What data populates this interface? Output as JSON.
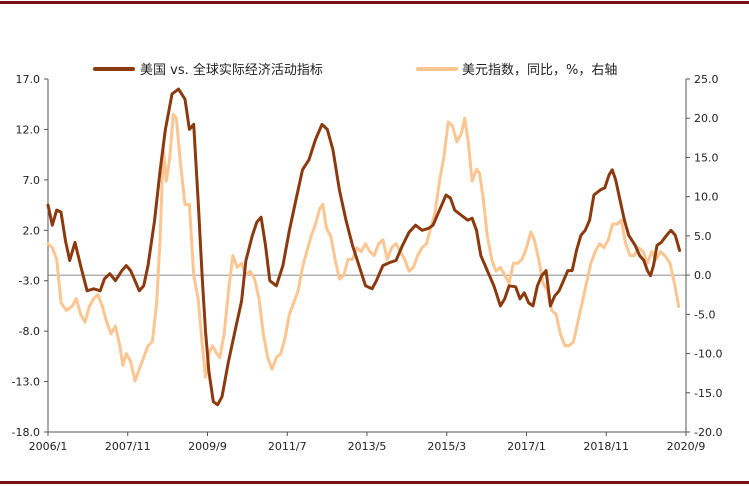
{
  "chart_data": {
    "type": "line",
    "title": "",
    "xlabel": "",
    "ylabel": "",
    "ylim": [
      -18.0,
      17.0
    ],
    "y2lim": [
      -20.0,
      25.0
    ],
    "y_ticks": [
      "17.0",
      "12.0",
      "7.0",
      "2.0",
      "-3.0",
      "-8.0",
      "-13.0",
      "-18.0"
    ],
    "y2_ticks": [
      "25.0",
      "20.0",
      "15.0",
      "10.0",
      "5.0",
      "0.0",
      "-5.0",
      "-10.0",
      "-15.0",
      "-20.0"
    ],
    "x_range": [
      2006.0,
      2020.667
    ],
    "x_ticks": [
      {
        "label": "2006/1",
        "value": 2006.0
      },
      {
        "label": "2007/11",
        "value": 2007.833
      },
      {
        "label": "2009/9",
        "value": 2009.667
      },
      {
        "label": "2011/7",
        "value": 2011.5
      },
      {
        "label": "2013/5",
        "value": 2013.333
      },
      {
        "label": "2015/3",
        "value": 2015.167
      },
      {
        "label": "2017/1",
        "value": 2017.0
      },
      {
        "label": "2018/11",
        "value": 2018.833
      },
      {
        "label": "2020/9",
        "value": 2020.667
      }
    ],
    "legend_position": "top",
    "zero_line": true,
    "series": [
      {
        "name": "美国 vs. 全球实际经济活动指标",
        "axis": "left",
        "color": "#8b3a0f",
        "points": [
          [
            2006.0,
            4.5
          ],
          [
            2006.1,
            2.5
          ],
          [
            2006.2,
            4.0
          ],
          [
            2006.3,
            3.8
          ],
          [
            2006.4,
            1.0
          ],
          [
            2006.5,
            -1.0
          ],
          [
            2006.62,
            0.8
          ],
          [
            2006.75,
            -1.5
          ],
          [
            2006.9,
            -4.0
          ],
          [
            2007.05,
            -3.8
          ],
          [
            2007.2,
            -4.0
          ],
          [
            2007.3,
            -2.8
          ],
          [
            2007.42,
            -2.3
          ],
          [
            2007.55,
            -3.0
          ],
          [
            2007.7,
            -2.0
          ],
          [
            2007.8,
            -1.5
          ],
          [
            2007.9,
            -2.0
          ],
          [
            2008.0,
            -3.0
          ],
          [
            2008.1,
            -4.0
          ],
          [
            2008.2,
            -3.5
          ],
          [
            2008.3,
            -1.5
          ],
          [
            2008.45,
            3.0
          ],
          [
            2008.58,
            8.0
          ],
          [
            2008.7,
            12.0
          ],
          [
            2008.85,
            15.5
          ],
          [
            2009.0,
            16.0
          ],
          [
            2009.15,
            15.0
          ],
          [
            2009.25,
            12.0
          ],
          [
            2009.35,
            12.5
          ],
          [
            2009.45,
            5.0
          ],
          [
            2009.55,
            -3.0
          ],
          [
            2009.62,
            -8.0
          ],
          [
            2009.7,
            -12.0
          ],
          [
            2009.8,
            -15.0
          ],
          [
            2009.9,
            -15.3
          ],
          [
            2010.0,
            -14.5
          ],
          [
            2010.15,
            -11.0
          ],
          [
            2010.3,
            -8.0
          ],
          [
            2010.45,
            -5.0
          ],
          [
            2010.55,
            -1.0
          ],
          [
            2010.7,
            1.5
          ],
          [
            2010.8,
            2.8
          ],
          [
            2010.9,
            3.3
          ],
          [
            2011.0,
            0.5
          ],
          [
            2011.1,
            -3.0
          ],
          [
            2011.25,
            -3.5
          ],
          [
            2011.4,
            -1.5
          ],
          [
            2011.55,
            2.0
          ],
          [
            2011.7,
            5.0
          ],
          [
            2011.85,
            8.0
          ],
          [
            2012.0,
            9.0
          ],
          [
            2012.15,
            11.0
          ],
          [
            2012.3,
            12.5
          ],
          [
            2012.42,
            12.0
          ],
          [
            2012.55,
            10.0
          ],
          [
            2012.7,
            6.0
          ],
          [
            2012.85,
            3.0
          ],
          [
            2013.0,
            0.5
          ],
          [
            2013.15,
            -1.5
          ],
          [
            2013.3,
            -3.5
          ],
          [
            2013.45,
            -3.8
          ],
          [
            2013.55,
            -3.0
          ],
          [
            2013.7,
            -1.5
          ],
          [
            2013.85,
            -1.2
          ],
          [
            2014.0,
            -1.0
          ],
          [
            2014.15,
            0.5
          ],
          [
            2014.3,
            1.8
          ],
          [
            2014.45,
            2.5
          ],
          [
            2014.6,
            2.0
          ],
          [
            2014.75,
            2.2
          ],
          [
            2014.85,
            2.5
          ],
          [
            2015.0,
            4.0
          ],
          [
            2015.15,
            5.5
          ],
          [
            2015.25,
            5.2
          ],
          [
            2015.35,
            4.0
          ],
          [
            2015.5,
            3.5
          ],
          [
            2015.65,
            3.0
          ],
          [
            2015.75,
            3.2
          ],
          [
            2015.85,
            2.0
          ],
          [
            2015.95,
            -0.5
          ],
          [
            2016.1,
            -2.0
          ],
          [
            2016.25,
            -3.5
          ],
          [
            2016.4,
            -5.5
          ],
          [
            2016.5,
            -4.8
          ],
          [
            2016.6,
            -3.5
          ],
          [
            2016.75,
            -3.6
          ],
          [
            2016.85,
            -4.8
          ],
          [
            2016.95,
            -4.2
          ],
          [
            2017.05,
            -5.2
          ],
          [
            2017.15,
            -5.5
          ],
          [
            2017.25,
            -3.5
          ],
          [
            2017.35,
            -2.5
          ],
          [
            2017.45,
            -2.0
          ],
          [
            2017.55,
            -5.5
          ],
          [
            2017.65,
            -4.5
          ],
          [
            2017.75,
            -4.0
          ],
          [
            2017.85,
            -3.0
          ],
          [
            2017.95,
            -2.0
          ],
          [
            2018.05,
            -2.0
          ],
          [
            2018.15,
            0.0
          ],
          [
            2018.25,
            1.5
          ],
          [
            2018.35,
            2.0
          ],
          [
            2018.45,
            3.0
          ],
          [
            2018.55,
            5.5
          ],
          [
            2018.7,
            6.0
          ],
          [
            2018.8,
            6.2
          ],
          [
            2018.9,
            7.5
          ],
          [
            2018.97,
            8.0
          ],
          [
            2019.05,
            7.0
          ],
          [
            2019.15,
            5.0
          ],
          [
            2019.25,
            3.0
          ],
          [
            2019.35,
            1.5
          ],
          [
            2019.5,
            0.5
          ],
          [
            2019.6,
            -0.5
          ],
          [
            2019.7,
            -1.0
          ],
          [
            2019.78,
            -2.0
          ],
          [
            2019.85,
            -2.5
          ],
          [
            2019.92,
            -1.5
          ],
          [
            2020.0,
            0.5
          ],
          [
            2020.1,
            0.8
          ],
          [
            2020.22,
            1.5
          ],
          [
            2020.32,
            2.0
          ],
          [
            2020.42,
            1.5
          ],
          [
            2020.52,
            0.0
          ]
        ]
      },
      {
        "name": "美元指数，同比，%，右轴",
        "axis": "right",
        "color": "#fcc591",
        "points": [
          [
            2006.0,
            4.0
          ],
          [
            2006.1,
            3.5
          ],
          [
            2006.2,
            2.0
          ],
          [
            2006.3,
            -3.5
          ],
          [
            2006.42,
            -4.5
          ],
          [
            2006.55,
            -4.0
          ],
          [
            2006.65,
            -3.0
          ],
          [
            2006.75,
            -5.0
          ],
          [
            2006.85,
            -6.0
          ],
          [
            2006.95,
            -4.0
          ],
          [
            2007.05,
            -3.0
          ],
          [
            2007.15,
            -2.5
          ],
          [
            2007.25,
            -4.0
          ],
          [
            2007.35,
            -6.0
          ],
          [
            2007.45,
            -7.5
          ],
          [
            2007.55,
            -6.5
          ],
          [
            2007.65,
            -9.0
          ],
          [
            2007.72,
            -11.5
          ],
          [
            2007.8,
            -10.0
          ],
          [
            2007.9,
            -11.0
          ],
          [
            2008.0,
            -13.5
          ],
          [
            2008.1,
            -12.0
          ],
          [
            2008.2,
            -10.5
          ],
          [
            2008.3,
            -9.0
          ],
          [
            2008.4,
            -8.5
          ],
          [
            2008.5,
            -3.5
          ],
          [
            2008.58,
            5.0
          ],
          [
            2008.65,
            16.0
          ],
          [
            2008.72,
            12.0
          ],
          [
            2008.8,
            15.0
          ],
          [
            2008.88,
            20.5
          ],
          [
            2008.95,
            20.0
          ],
          [
            2009.05,
            14.0
          ],
          [
            2009.15,
            9.0
          ],
          [
            2009.25,
            9.0
          ],
          [
            2009.35,
            0.0
          ],
          [
            2009.45,
            -3.0
          ],
          [
            2009.55,
            -9.0
          ],
          [
            2009.62,
            -13.0
          ],
          [
            2009.7,
            -10.0
          ],
          [
            2009.78,
            -9.0
          ],
          [
            2009.88,
            -10.0
          ],
          [
            2009.95,
            -10.5
          ],
          [
            2010.05,
            -7.5
          ],
          [
            2010.15,
            -2.0
          ],
          [
            2010.25,
            2.5
          ],
          [
            2010.35,
            1.0
          ],
          [
            2010.45,
            1.5
          ],
          [
            2010.55,
            0.0
          ],
          [
            2010.65,
            0.5
          ],
          [
            2010.75,
            -0.5
          ],
          [
            2010.85,
            -3.0
          ],
          [
            2010.95,
            -7.5
          ],
          [
            2011.05,
            -10.5
          ],
          [
            2011.15,
            -12.0
          ],
          [
            2011.25,
            -10.5
          ],
          [
            2011.35,
            -10.0
          ],
          [
            2011.45,
            -8.0
          ],
          [
            2011.55,
            -5.0
          ],
          [
            2011.65,
            -3.5
          ],
          [
            2011.75,
            -2.0
          ],
          [
            2011.85,
            1.0
          ],
          [
            2011.95,
            3.0
          ],
          [
            2012.05,
            5.0
          ],
          [
            2012.15,
            6.5
          ],
          [
            2012.25,
            8.5
          ],
          [
            2012.32,
            9.0
          ],
          [
            2012.4,
            6.0
          ],
          [
            2012.5,
            5.0
          ],
          [
            2012.6,
            2.0
          ],
          [
            2012.7,
            -0.5
          ],
          [
            2012.8,
            0.0
          ],
          [
            2012.9,
            2.0
          ],
          [
            2013.0,
            2.0
          ],
          [
            2013.1,
            3.5
          ],
          [
            2013.2,
            3.0
          ],
          [
            2013.3,
            4.0
          ],
          [
            2013.4,
            3.0
          ],
          [
            2013.5,
            2.5
          ],
          [
            2013.6,
            4.0
          ],
          [
            2013.7,
            4.5
          ],
          [
            2013.8,
            2.0
          ],
          [
            2013.9,
            3.5
          ],
          [
            2014.0,
            4.0
          ],
          [
            2014.1,
            3.0
          ],
          [
            2014.2,
            2.0
          ],
          [
            2014.3,
            0.5
          ],
          [
            2014.4,
            1.0
          ],
          [
            2014.5,
            2.5
          ],
          [
            2014.6,
            3.5
          ],
          [
            2014.7,
            4.0
          ],
          [
            2014.8,
            6.0
          ],
          [
            2014.9,
            8.0
          ],
          [
            2015.0,
            12.0
          ],
          [
            2015.1,
            15.0
          ],
          [
            2015.2,
            19.5
          ],
          [
            2015.3,
            19.0
          ],
          [
            2015.4,
            17.0
          ],
          [
            2015.5,
            18.0
          ],
          [
            2015.58,
            20.0
          ],
          [
            2015.66,
            17.0
          ],
          [
            2015.75,
            12.0
          ],
          [
            2015.85,
            13.5
          ],
          [
            2015.92,
            13.0
          ],
          [
            2016.0,
            10.0
          ],
          [
            2016.1,
            5.0
          ],
          [
            2016.2,
            2.0
          ],
          [
            2016.3,
            0.5
          ],
          [
            2016.4,
            1.0
          ],
          [
            2016.5,
            0.0
          ],
          [
            2016.6,
            -1.0
          ],
          [
            2016.7,
            1.5
          ],
          [
            2016.8,
            1.5
          ],
          [
            2016.9,
            2.0
          ],
          [
            2017.0,
            3.5
          ],
          [
            2017.1,
            5.5
          ],
          [
            2017.18,
            4.5
          ],
          [
            2017.28,
            2.0
          ],
          [
            2017.38,
            -1.0
          ],
          [
            2017.48,
            -2.0
          ],
          [
            2017.58,
            -4.5
          ],
          [
            2017.68,
            -5.0
          ],
          [
            2017.78,
            -7.5
          ],
          [
            2017.88,
            -9.0
          ],
          [
            2017.98,
            -9.0
          ],
          [
            2018.08,
            -8.5
          ],
          [
            2018.18,
            -6.0
          ],
          [
            2018.28,
            -3.5
          ],
          [
            2018.38,
            -1.0
          ],
          [
            2018.48,
            1.5
          ],
          [
            2018.58,
            3.0
          ],
          [
            2018.68,
            4.0
          ],
          [
            2018.78,
            3.5
          ],
          [
            2018.88,
            4.5
          ],
          [
            2018.98,
            6.5
          ],
          [
            2019.08,
            6.5
          ],
          [
            2019.18,
            7.0
          ],
          [
            2019.28,
            4.0
          ],
          [
            2019.38,
            2.5
          ],
          [
            2019.48,
            2.5
          ],
          [
            2019.58,
            3.5
          ],
          [
            2019.68,
            3.0
          ],
          [
            2019.78,
            1.5
          ],
          [
            2019.88,
            3.0
          ],
          [
            2019.98,
            2.0
          ],
          [
            2020.08,
            3.0
          ],
          [
            2020.18,
            2.5
          ],
          [
            2020.3,
            1.5
          ],
          [
            2020.4,
            -1.0
          ],
          [
            2020.5,
            -4.0
          ]
        ]
      }
    ]
  }
}
